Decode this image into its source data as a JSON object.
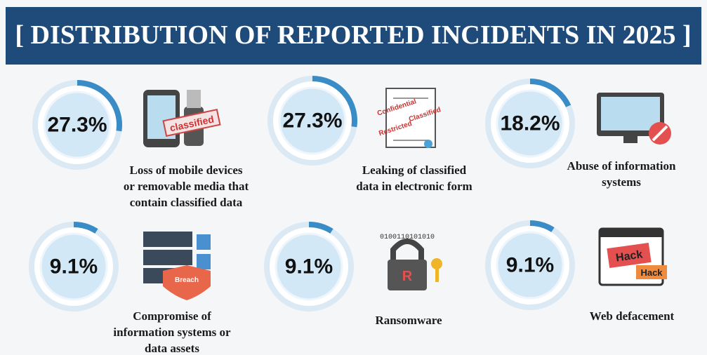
{
  "header": {
    "title": "[ DISTRIBUTION OF REPORTED INCIDENTS IN 2025 ]"
  },
  "items": [
    {
      "value": 27.3,
      "value_label": "27.3%",
      "label_lines": [
        "Loss of mobile devices",
        "or removable media that",
        "contain classified data"
      ],
      "icon_texts": [
        "classified"
      ]
    },
    {
      "value": 27.3,
      "value_label": "27.3%",
      "label_lines": [
        "Leaking of classified",
        "data in electronic form"
      ],
      "icon_texts": [
        "Confidential",
        "Classified",
        "Restricted"
      ]
    },
    {
      "value": 18.2,
      "value_label": "18.2%",
      "label_lines": [
        "Abuse of information",
        "systems"
      ],
      "icon_texts": []
    },
    {
      "value": 9.1,
      "value_label": "9.1%",
      "label_lines": [
        "Compromise of",
        "information systems or",
        "data assets"
      ],
      "icon_texts": [
        "Breach"
      ]
    },
    {
      "value": 9.1,
      "value_label": "9.1%",
      "label_lines": [
        "Ransomware"
      ],
      "icon_texts": [
        "R"
      ]
    },
    {
      "value": 9.1,
      "value_label": "9.1%",
      "label_lines": [
        "Web defacement"
      ],
      "icon_texts": [
        "Hack",
        "Hack"
      ]
    }
  ]
}
